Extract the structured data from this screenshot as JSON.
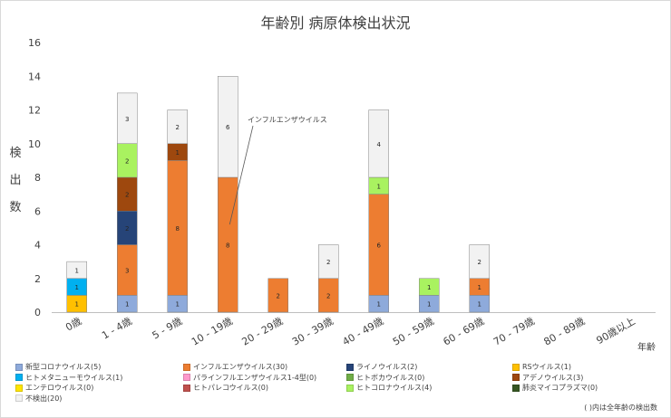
{
  "chart_data": {
    "type": "bar",
    "stacked": true,
    "title": "年齢別 病原体検出状況",
    "ylabel": "検出数",
    "xlabel": "年齢",
    "ylim": [
      0,
      16
    ],
    "yticks": [
      0,
      2,
      4,
      6,
      8,
      10,
      12,
      14,
      16
    ],
    "grid": false,
    "legend_position": "bottom",
    "categories": [
      "0歳",
      "1 - 4歳",
      "5 - 9歳",
      "10 - 19歳",
      "20 - 29歳",
      "30 - 39歳",
      "40 - 49歳",
      "50 - 59歳",
      "60 - 69歳",
      "70 - 79歳",
      "80 - 89歳",
      "90歳以上"
    ],
    "series": [
      {
        "name": "新型コロナウイルス(5)",
        "color": "#8eaadb",
        "values": [
          0,
          1,
          1,
          0,
          0,
          0,
          1,
          1,
          1,
          0,
          0,
          0
        ]
      },
      {
        "name": "インフルエンザウイルス(30)",
        "color": "#ed7d31",
        "values": [
          0,
          3,
          8,
          8,
          2,
          2,
          6,
          0,
          1,
          0,
          0,
          0
        ]
      },
      {
        "name": "ライノウイルス(2)",
        "color": "#264478",
        "values": [
          0,
          2,
          0,
          0,
          0,
          0,
          0,
          0,
          0,
          0,
          0,
          0
        ]
      },
      {
        "name": "RSウイルス(1)",
        "color": "#ffc000",
        "values": [
          1,
          0,
          0,
          0,
          0,
          0,
          0,
          0,
          0,
          0,
          0,
          0
        ]
      },
      {
        "name": "ヒトメタニューモウイルス(1)",
        "color": "#00b0f0",
        "values": [
          1,
          0,
          0,
          0,
          0,
          0,
          0,
          0,
          0,
          0,
          0,
          0
        ]
      },
      {
        "name": "パラインフルエンザウイルス1-4型(0)",
        "color": "#ff99cc",
        "values": [
          0,
          0,
          0,
          0,
          0,
          0,
          0,
          0,
          0,
          0,
          0,
          0
        ]
      },
      {
        "name": "ヒトボカウイルス(0)",
        "color": "#70ad47",
        "values": [
          0,
          0,
          0,
          0,
          0,
          0,
          0,
          0,
          0,
          0,
          0,
          0
        ]
      },
      {
        "name": "アデノウイルス(3)",
        "color": "#9e480e",
        "values": [
          0,
          2,
          1,
          0,
          0,
          0,
          0,
          0,
          0,
          0,
          0,
          0
        ]
      },
      {
        "name": "エンテロウイルス(0)",
        "color": "#ffe600",
        "values": [
          0,
          0,
          0,
          0,
          0,
          0,
          0,
          0,
          0,
          0,
          0,
          0
        ]
      },
      {
        "name": "ヒトパレコウイルス(0)",
        "color": "#c0504d",
        "values": [
          0,
          0,
          0,
          0,
          0,
          0,
          0,
          0,
          0,
          0,
          0,
          0
        ]
      },
      {
        "name": "ヒトコロナウイルス(4)",
        "color": "#a9f260",
        "values": [
          0,
          2,
          0,
          0,
          0,
          0,
          1,
          1,
          0,
          0,
          0,
          0
        ]
      },
      {
        "name": "肺炎マイコプラズマ(0)",
        "color": "#375623",
        "values": [
          0,
          0,
          0,
          0,
          0,
          0,
          0,
          0,
          0,
          0,
          0,
          0
        ]
      },
      {
        "name": "不検出(20)",
        "color": "#f2f2f2",
        "values": [
          1,
          3,
          2,
          6,
          0,
          2,
          4,
          0,
          2,
          0,
          0,
          0
        ]
      }
    ],
    "annotations": [
      {
        "text": "インフルエンザウイルス",
        "category": "10 - 19歳",
        "value": 5.2
      }
    ]
  },
  "footnote": "( )内は全年齢の検出数"
}
